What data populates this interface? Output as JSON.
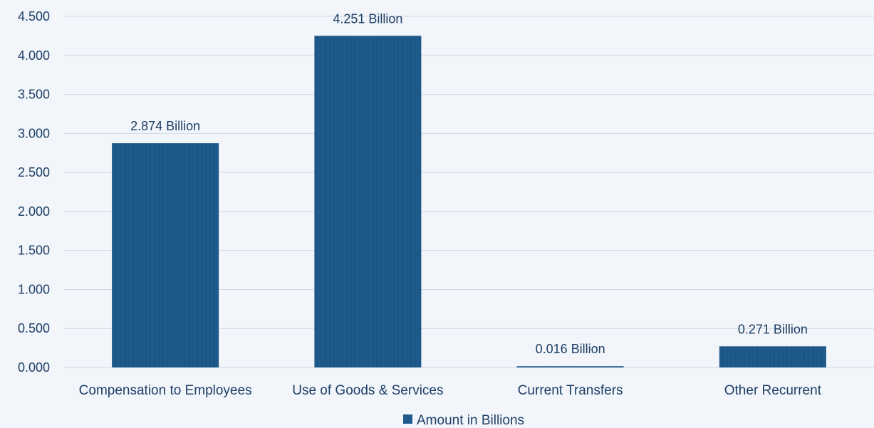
{
  "chart_data": {
    "type": "bar",
    "title": "",
    "xlabel": "",
    "ylabel": "",
    "categories": [
      "Compensation to Employees",
      "Use of Goods & Services",
      "Current Transfers",
      "Other Recurrent"
    ],
    "series": [
      {
        "name": "Amount in Billions",
        "values": [
          2.874,
          4.251,
          0.016,
          0.271
        ],
        "data_labels": [
          "2.874 Billion",
          "4.251 Billion",
          "0.016 Billion",
          "0.271 Billion"
        ],
        "color": "#1f5a8c"
      }
    ],
    "ylim": [
      0,
      4.5
    ],
    "yticks": [
      "0.000",
      "0.500",
      "1.000",
      "1.500",
      "2.000",
      "2.500",
      "3.000",
      "3.500",
      "4.000",
      "4.500"
    ],
    "grid": true,
    "legend": "bottom-center"
  },
  "colors": {
    "bar": "#1f5a8c",
    "bar_dark": "#174b78",
    "text": "#1d3f66",
    "grid": "#cfd9e6",
    "background": "#f2f5fa"
  }
}
